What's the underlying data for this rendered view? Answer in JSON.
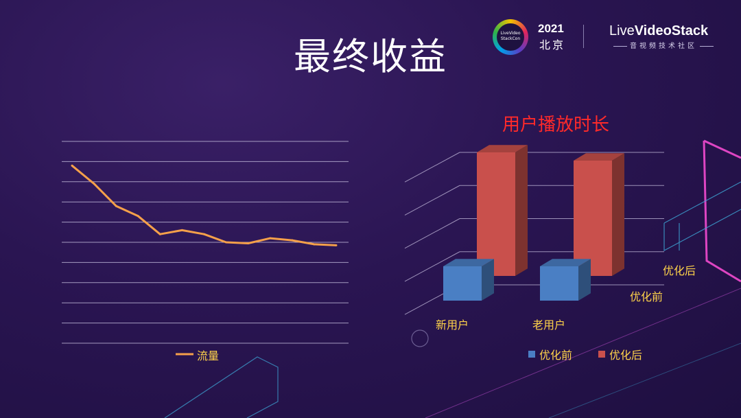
{
  "slide": {
    "title": "最终收益"
  },
  "logo": {
    "badge_text": "LiveVideo StackCon",
    "year": "2021",
    "city": "北京",
    "brand_prefix": "Live",
    "brand_main": "VideoStack",
    "tagline": "音视频技术社区"
  },
  "colors": {
    "line": "#f5a04a",
    "before": "#4a7fc4",
    "after": "#c9504c",
    "chart_title": "#ff2a2a",
    "series_label": "#ffd34a",
    "accent_pink": "#ff4fd8",
    "accent_cyan": "#3fa9d8"
  },
  "chart_data": [
    {
      "type": "line",
      "title": "",
      "x": [
        1,
        2,
        3,
        4,
        5,
        6,
        7,
        8,
        9,
        10,
        11,
        12,
        13
      ],
      "series": [
        {
          "name": "流量",
          "values": [
            8.8,
            7.9,
            6.8,
            6.3,
            5.4,
            5.6,
            5.4,
            5.0,
            4.95,
            5.2,
            5.1,
            4.9,
            4.85
          ]
        }
      ],
      "ylim": [
        0,
        10
      ],
      "grid": true,
      "legend": "bottom"
    },
    {
      "type": "bar",
      "title": "用户播放时长",
      "categories": [
        "新用户",
        "老用户"
      ],
      "series": [
        {
          "name": "优化前",
          "values": [
            1.0,
            1.0
          ]
        },
        {
          "name": "优化后",
          "values": [
            3.0,
            2.8
          ]
        }
      ],
      "ylim": [
        0,
        4
      ],
      "grid": true,
      "legend": "bottom"
    }
  ]
}
